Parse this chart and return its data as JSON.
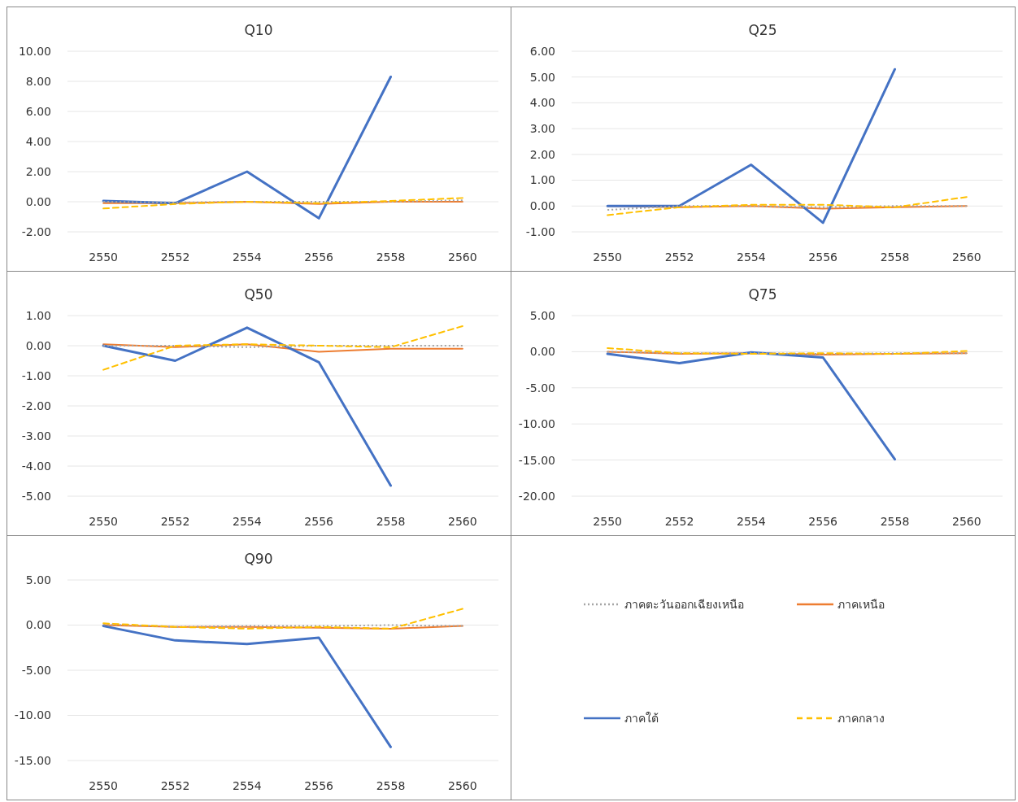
{
  "chart_data": [
    {
      "type": "line",
      "title": "Q10",
      "categories": [
        "2550",
        "2552",
        "2554",
        "2556",
        "2558",
        "2560"
      ],
      "ylim": [
        -2,
        10
      ],
      "yticks": [
        {
          "value": -2,
          "label": "-2.00"
        },
        {
          "value": 0,
          "label": "0.00"
        },
        {
          "value": 2,
          "label": "2.00"
        },
        {
          "value": 4,
          "label": "4.00"
        },
        {
          "value": 6,
          "label": "6.00"
        },
        {
          "value": 8,
          "label": "8.00"
        },
        {
          "value": 10,
          "label": "10.00"
        }
      ],
      "grid": "y",
      "legend": false,
      "series": [
        {
          "color": "#a5a5a5",
          "line_style": "dotted",
          "values": [
            0,
            -0.05,
            0,
            0,
            0,
            0.1
          ]
        },
        {
          "color": "#ed7d31",
          "line_style": "solid",
          "values": [
            -0.1,
            -0.1,
            0,
            -0.15,
            0,
            0
          ]
        },
        {
          "color": "#4472c4",
          "line_style": "solid",
          "values": [
            0.05,
            -0.1,
            2.0,
            -1.1,
            8.3,
            null
          ]
        },
        {
          "color": "#ffc000",
          "line_style": "dashed",
          "values": [
            -0.45,
            -0.15,
            0,
            -0.1,
            0.05,
            0.25
          ]
        }
      ]
    },
    {
      "type": "line",
      "title": "Q25",
      "categories": [
        "2550",
        "2552",
        "2554",
        "2556",
        "2558",
        "2560"
      ],
      "ylim": [
        -1,
        6
      ],
      "yticks": [
        {
          "value": -1,
          "label": "-1.00"
        },
        {
          "value": 0,
          "label": "0.00"
        },
        {
          "value": 1,
          "label": "1.00"
        },
        {
          "value": 2,
          "label": "2.00"
        },
        {
          "value": 3,
          "label": "3.00"
        },
        {
          "value": 4,
          "label": "4.00"
        },
        {
          "value": 5,
          "label": "5.00"
        },
        {
          "value": 6,
          "label": "6.00"
        }
      ],
      "grid": "y",
      "legend": false,
      "series": [
        {
          "color": "#a5a5a5",
          "line_style": "dotted",
          "values": [
            -0.15,
            0,
            0,
            -0.05,
            0,
            0
          ]
        },
        {
          "color": "#ed7d31",
          "line_style": "solid",
          "values": [
            0,
            -0.05,
            0,
            -0.1,
            -0.05,
            0
          ]
        },
        {
          "color": "#4472c4",
          "line_style": "solid",
          "values": [
            0,
            0,
            1.6,
            -0.65,
            5.3,
            null
          ]
        },
        {
          "color": "#ffc000",
          "line_style": "dashed",
          "values": [
            -0.35,
            -0.05,
            0.05,
            0.05,
            -0.05,
            0.35
          ]
        }
      ]
    },
    {
      "type": "line",
      "title": "Q50",
      "categories": [
        "2550",
        "2552",
        "2554",
        "2556",
        "2558",
        "2560"
      ],
      "ylim": [
        -5,
        1
      ],
      "yticks": [
        {
          "value": -5,
          "label": "-5.00"
        },
        {
          "value": -4,
          "label": "-4.00"
        },
        {
          "value": -3,
          "label": "-3.00"
        },
        {
          "value": -2,
          "label": "-2.00"
        },
        {
          "value": -1,
          "label": "-1.00"
        },
        {
          "value": 0,
          "label": "0.00"
        },
        {
          "value": 1,
          "label": "1.00"
        }
      ],
      "grid": "y",
      "legend": false,
      "series": [
        {
          "color": "#a5a5a5",
          "line_style": "dotted",
          "values": [
            0,
            0,
            -0.05,
            0,
            0,
            0
          ]
        },
        {
          "color": "#ed7d31",
          "line_style": "solid",
          "values": [
            0.05,
            -0.05,
            0.05,
            -0.2,
            -0.1,
            -0.1
          ]
        },
        {
          "color": "#4472c4",
          "line_style": "solid",
          "values": [
            0,
            -0.5,
            0.6,
            -0.55,
            -4.65,
            null
          ]
        },
        {
          "color": "#ffc000",
          "line_style": "dashed",
          "values": [
            -0.8,
            0,
            0.05,
            0,
            -0.05,
            0.65
          ]
        }
      ]
    },
    {
      "type": "line",
      "title": "Q75",
      "categories": [
        "2550",
        "2552",
        "2554",
        "2556",
        "2558",
        "2560"
      ],
      "ylim": [
        -20,
        5
      ],
      "yticks": [
        {
          "value": -20,
          "label": "-20.00"
        },
        {
          "value": -15,
          "label": "-15.00"
        },
        {
          "value": -10,
          "label": "-10.00"
        },
        {
          "value": -5,
          "label": "-5.00"
        },
        {
          "value": 0,
          "label": "0.00"
        },
        {
          "value": 5,
          "label": "5.00"
        }
      ],
      "grid": "y",
      "legend": false,
      "series": [
        {
          "color": "#a5a5a5",
          "line_style": "dotted",
          "values": [
            0,
            -0.2,
            -0.2,
            -0.3,
            -0.2,
            -0.2
          ]
        },
        {
          "color": "#ed7d31",
          "line_style": "solid",
          "values": [
            0,
            -0.3,
            -0.2,
            -0.4,
            -0.3,
            -0.2
          ]
        },
        {
          "color": "#4472c4",
          "line_style": "solid",
          "values": [
            -0.3,
            -1.6,
            -0.1,
            -0.8,
            -14.9,
            null
          ]
        },
        {
          "color": "#ffc000",
          "line_style": "dashed",
          "values": [
            0.5,
            -0.2,
            -0.3,
            -0.2,
            -0.3,
            0.1
          ]
        }
      ]
    },
    {
      "type": "line",
      "title": "Q90",
      "categories": [
        "2550",
        "2552",
        "2554",
        "2556",
        "2558",
        "2560"
      ],
      "ylim": [
        -15,
        5
      ],
      "yticks": [
        {
          "value": -15,
          "label": "-15.00"
        },
        {
          "value": -10,
          "label": "-10.00"
        },
        {
          "value": -5,
          "label": "-5.00"
        },
        {
          "value": 0,
          "label": "0.00"
        },
        {
          "value": 5,
          "label": "5.00"
        }
      ],
      "grid": "y",
      "legend": "right",
      "series": [
        {
          "name": "ภาคตะวันออกเฉียงเหนือ",
          "color": "#a5a5a5",
          "line_style": "dotted",
          "values": [
            0.1,
            -0.2,
            -0.1,
            -0.1,
            0,
            -0.1
          ]
        },
        {
          "name": "ภาคเหนือ",
          "color": "#ed7d31",
          "line_style": "solid",
          "values": [
            0,
            -0.2,
            -0.2,
            -0.3,
            -0.4,
            -0.1
          ]
        },
        {
          "name": "ภาคใต้",
          "color": "#4472c4",
          "line_style": "solid",
          "values": [
            -0.1,
            -1.7,
            -2.1,
            -1.4,
            -13.5,
            null
          ]
        },
        {
          "name": "ภาคกลาง",
          "color": "#ffc000",
          "line_style": "dashed",
          "values": [
            0.2,
            -0.2,
            -0.4,
            -0.2,
            -0.4,
            1.8
          ]
        }
      ]
    }
  ]
}
